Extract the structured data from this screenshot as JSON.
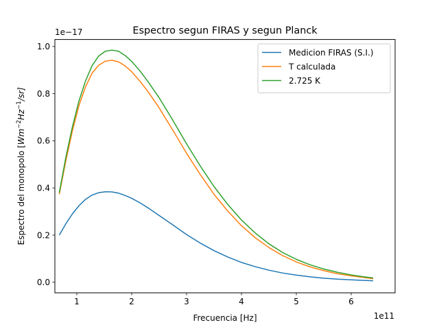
{
  "chart_data": {
    "type": "line",
    "title": "Espectro segun FIRAS y segun Planck",
    "xlabel": "Frecuencia [Hz]",
    "ylabel_prefix": "Espectro del monopolo [",
    "ylabel_math": "Wm",
    "ylabel_exp1": "−2",
    "ylabel_mid": "Hz",
    "ylabel_exp2": "−1",
    "ylabel_suffix": "/sr]",
    "x_offset_label": "1e11",
    "y_offset_label": "1e−17",
    "xlim": [
      0.6,
      6.8
    ],
    "ylim": [
      -0.045,
      1.03
    ],
    "xticks": [
      1,
      2,
      3,
      4,
      5,
      6
    ],
    "xtick_labels": [
      "1",
      "2",
      "3",
      "4",
      "5",
      "6"
    ],
    "yticks": [
      0.0,
      0.2,
      0.4,
      0.6,
      0.8,
      1.0
    ],
    "ytick_labels": [
      "0.0",
      "0.2",
      "0.4",
      "0.6",
      "0.8",
      "1.0"
    ],
    "grid": false,
    "legend_position": "top-right",
    "x": [
      0.68,
      0.8,
      0.92,
      1.04,
      1.16,
      1.28,
      1.4,
      1.52,
      1.64,
      1.76,
      1.88,
      2.0,
      2.15,
      2.3,
      2.5,
      2.75,
      3.0,
      3.25,
      3.5,
      3.75,
      4.0,
      4.25,
      4.5,
      4.75,
      5.0,
      5.25,
      5.5,
      5.75,
      6.0,
      6.2,
      6.4
    ],
    "series": [
      {
        "name": "Medicion FIRAS (S.I.)",
        "color": "#1f77b4",
        "values": [
          0.2,
          0.248,
          0.29,
          0.325,
          0.352,
          0.37,
          0.38,
          0.384,
          0.383,
          0.378,
          0.368,
          0.356,
          0.337,
          0.315,
          0.283,
          0.243,
          0.202,
          0.166,
          0.134,
          0.107,
          0.084,
          0.066,
          0.051,
          0.039,
          0.03,
          0.023,
          0.017,
          0.013,
          0.01,
          0.008,
          0.006
        ]
      },
      {
        "name": "T calculada",
        "color": "#ff7f0e",
        "values": [
          0.373,
          0.515,
          0.643,
          0.75,
          0.83,
          0.888,
          0.921,
          0.938,
          0.942,
          0.935,
          0.918,
          0.893,
          0.853,
          0.808,
          0.74,
          0.645,
          0.547,
          0.457,
          0.373,
          0.302,
          0.24,
          0.189,
          0.147,
          0.113,
          0.086,
          0.065,
          0.049,
          0.036,
          0.027,
          0.021,
          0.015
        ]
      },
      {
        "name": "2.725 K",
        "color": "#2ca02c",
        "values": [
          0.38,
          0.53,
          0.66,
          0.77,
          0.855,
          0.92,
          0.96,
          0.98,
          0.985,
          0.98,
          0.962,
          0.937,
          0.897,
          0.85,
          0.783,
          0.687,
          0.587,
          0.493,
          0.406,
          0.33,
          0.264,
          0.209,
          0.163,
          0.126,
          0.097,
          0.074,
          0.056,
          0.042,
          0.031,
          0.024,
          0.018
        ]
      }
    ]
  }
}
